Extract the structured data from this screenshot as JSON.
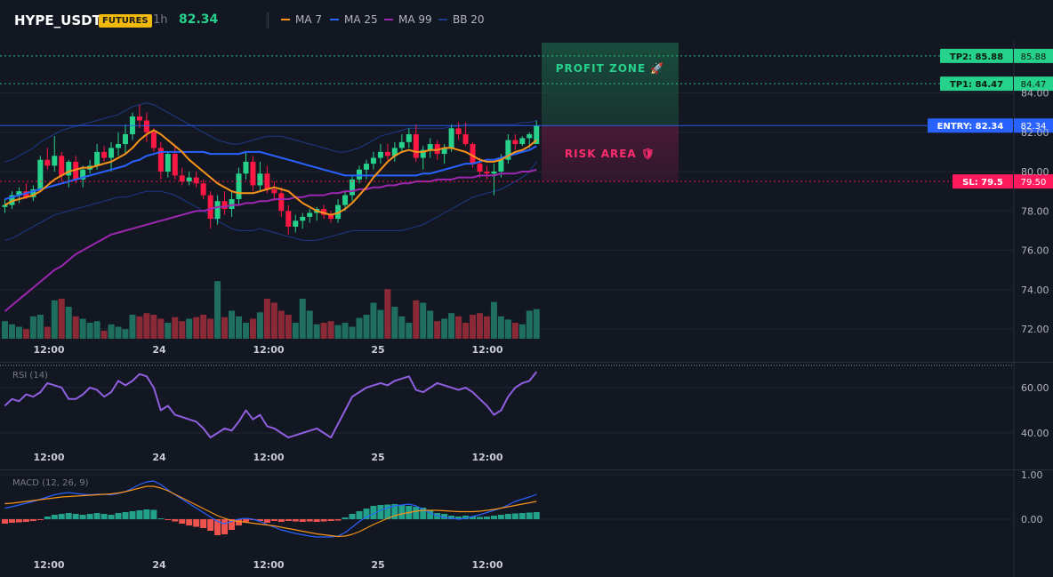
{
  "header": {
    "symbol": "HYPE_USDT",
    "badge": "FUTURES",
    "timeframe": "1h",
    "price": "82.34",
    "legend": [
      {
        "label": "MA 7",
        "color": "#f7931a"
      },
      {
        "label": "MA 25",
        "color": "#2962ff"
      },
      {
        "label": "MA 99",
        "color": "#9c27b0"
      },
      {
        "label": "BB 20",
        "color": "#1e3a8a"
      }
    ]
  },
  "chart_data": [
    {
      "type": "candlestick",
      "title": "HYPE_USDT",
      "ylim": [
        71.5,
        85.5
      ],
      "y_ticks": [
        "84.00",
        "82.00",
        "80.00",
        "78.00",
        "76.00",
        "74.00",
        "72.00"
      ],
      "x_tick_labels": [
        "12:00",
        "24",
        "12:00",
        "25",
        "12:00"
      ],
      "candles": [
        [
          78.2,
          78.6,
          77.9,
          78.3
        ],
        [
          78.3,
          79.0,
          78.1,
          78.8
        ],
        [
          78.8,
          79.2,
          78.4,
          79.0
        ],
        [
          79.0,
          79.4,
          78.6,
          78.7
        ],
        [
          78.7,
          79.3,
          78.5,
          79.1
        ],
        [
          79.1,
          80.8,
          79.0,
          80.6
        ],
        [
          80.6,
          81.2,
          80.1,
          80.3
        ],
        [
          80.3,
          81.8,
          80.0,
          80.8
        ],
        [
          80.8,
          81.0,
          79.5,
          79.8
        ],
        [
          79.8,
          80.6,
          79.2,
          80.5
        ],
        [
          80.5,
          80.8,
          79.4,
          79.6
        ],
        [
          79.6,
          80.3,
          79.2,
          80.1
        ],
        [
          80.1,
          80.6,
          79.9,
          80.3
        ],
        [
          80.3,
          81.4,
          80.1,
          81.0
        ],
        [
          81.0,
          81.3,
          80.5,
          80.7
        ],
        [
          80.7,
          81.5,
          80.0,
          81.2
        ],
        [
          81.2,
          82.0,
          80.8,
          81.4
        ],
        [
          81.4,
          82.4,
          80.9,
          81.9
        ],
        [
          81.9,
          83.0,
          81.6,
          82.8
        ],
        [
          82.8,
          83.4,
          82.2,
          82.6
        ],
        [
          82.6,
          83.0,
          81.5,
          82.0
        ],
        [
          82.0,
          82.2,
          81.0,
          81.2
        ],
        [
          81.2,
          81.5,
          79.6,
          80.0
        ],
        [
          80.0,
          81.0,
          79.7,
          80.9
        ],
        [
          80.9,
          81.3,
          79.6,
          79.8
        ],
        [
          79.8,
          80.2,
          79.3,
          79.5
        ],
        [
          79.5,
          80.0,
          79.3,
          79.7
        ],
        [
          79.7,
          80.0,
          79.2,
          79.4
        ],
        [
          79.4,
          79.6,
          78.6,
          78.8
        ],
        [
          78.8,
          79.0,
          77.1,
          77.6
        ],
        [
          77.6,
          78.8,
          77.3,
          78.5
        ],
        [
          78.5,
          79.0,
          77.8,
          78.1
        ],
        [
          78.1,
          79.0,
          77.7,
          78.6
        ],
        [
          78.6,
          80.2,
          78.3,
          79.9
        ],
        [
          79.9,
          81.0,
          79.6,
          80.5
        ],
        [
          80.5,
          80.8,
          79.0,
          79.3
        ],
        [
          79.3,
          80.5,
          79.0,
          79.9
        ],
        [
          79.9,
          80.3,
          78.9,
          79.1
        ],
        [
          79.1,
          79.5,
          78.5,
          78.9
        ],
        [
          78.9,
          79.2,
          77.7,
          78.0
        ],
        [
          78.0,
          78.3,
          76.8,
          77.2
        ],
        [
          77.2,
          77.8,
          76.9,
          77.5
        ],
        [
          77.5,
          77.9,
          77.1,
          77.7
        ],
        [
          77.7,
          78.1,
          77.4,
          77.9
        ],
        [
          77.9,
          78.2,
          77.5,
          78.1
        ],
        [
          78.1,
          78.3,
          77.6,
          77.8
        ],
        [
          77.8,
          78.0,
          77.4,
          77.6
        ],
        [
          77.6,
          78.6,
          77.4,
          78.3
        ],
        [
          78.3,
          79.0,
          78.0,
          78.8
        ],
        [
          78.8,
          79.8,
          78.5,
          79.6
        ],
        [
          79.6,
          80.3,
          79.4,
          80.1
        ],
        [
          80.1,
          80.6,
          79.6,
          80.4
        ],
        [
          80.4,
          81.0,
          80.1,
          80.7
        ],
        [
          80.7,
          81.4,
          80.4,
          81.0
        ],
        [
          81.0,
          81.4,
          80.6,
          80.8
        ],
        [
          80.8,
          81.5,
          80.5,
          81.2
        ],
        [
          81.2,
          81.9,
          81.0,
          81.5
        ],
        [
          81.5,
          82.2,
          81.2,
          81.9
        ],
        [
          81.9,
          82.4,
          80.5,
          80.7
        ],
        [
          80.7,
          81.3,
          80.1,
          81.1
        ],
        [
          81.1,
          81.7,
          80.7,
          81.4
        ],
        [
          81.4,
          81.6,
          80.6,
          80.9
        ],
        [
          80.9,
          81.4,
          80.4,
          81.2
        ],
        [
          81.2,
          82.4,
          81.0,
          82.2
        ],
        [
          82.2,
          82.5,
          81.6,
          81.9
        ],
        [
          81.9,
          82.5,
          81.3,
          81.4
        ],
        [
          81.4,
          81.5,
          80.2,
          80.4
        ],
        [
          80.4,
          80.7,
          79.7,
          80.0
        ],
        [
          80.0,
          80.3,
          79.6,
          79.9
        ],
        [
          79.9,
          80.4,
          78.8,
          80.0
        ],
        [
          80.0,
          80.9,
          79.7,
          80.6
        ],
        [
          80.6,
          81.9,
          80.4,
          81.6
        ],
        [
          81.6,
          81.9,
          81.1,
          81.4
        ],
        [
          81.4,
          81.8,
          81.3,
          81.7
        ],
        [
          81.7,
          82.0,
          81.2,
          81.9
        ],
        [
          81.4,
          82.6,
          81.4,
          82.34
        ]
      ],
      "ma7": [
        78.3,
        78.5,
        78.6,
        78.7,
        78.8,
        79.0,
        79.3,
        79.6,
        79.8,
        80.0,
        80.1,
        80.2,
        80.2,
        80.3,
        80.4,
        80.5,
        80.7,
        80.9,
        81.2,
        81.6,
        81.9,
        82.1,
        81.9,
        81.6,
        81.3,
        81.0,
        80.6,
        80.3,
        80.0,
        79.7,
        79.4,
        79.2,
        79.0,
        78.9,
        78.9,
        78.9,
        79.0,
        79.1,
        79.2,
        79.1,
        79.0,
        78.7,
        78.4,
        78.2,
        78.0,
        77.9,
        77.8,
        77.9,
        78.1,
        78.4,
        78.8,
        79.2,
        79.7,
        80.1,
        80.5,
        80.8,
        81.0,
        81.1,
        81.0,
        81.0,
        81.1,
        81.1,
        81.2,
        81.2,
        81.1,
        81.0,
        80.8,
        80.6,
        80.5,
        80.5,
        80.6,
        80.8,
        81.0,
        81.1,
        81.3,
        81.6
      ],
      "ma25": [
        78.6,
        78.7,
        78.8,
        78.9,
        79.0,
        79.1,
        79.2,
        79.3,
        79.4,
        79.5,
        79.6,
        79.7,
        79.8,
        79.9,
        80.0,
        80.1,
        80.2,
        80.3,
        80.5,
        80.6,
        80.8,
        80.9,
        81.0,
        81.0,
        81.0,
        81.0,
        81.0,
        81.0,
        81.0,
        80.9,
        80.9,
        80.9,
        80.9,
        80.9,
        81.0,
        81.0,
        81.0,
        80.9,
        80.8,
        80.7,
        80.6,
        80.5,
        80.4,
        80.3,
        80.2,
        80.1,
        80.0,
        79.9,
        79.8,
        79.8,
        79.8,
        79.8,
        79.8,
        79.8,
        79.8,
        79.8,
        79.8,
        79.8,
        79.8,
        79.9,
        79.9,
        80.0,
        80.1,
        80.2,
        80.3,
        80.4,
        80.4,
        80.5,
        80.6,
        80.6,
        80.7,
        80.8,
        80.9,
        81.0,
        81.1,
        81.3
      ],
      "ma99": [
        72.9,
        73.2,
        73.5,
        73.8,
        74.1,
        74.4,
        74.7,
        75.0,
        75.2,
        75.5,
        75.8,
        76.0,
        76.2,
        76.4,
        76.6,
        76.8,
        76.9,
        77.0,
        77.1,
        77.2,
        77.3,
        77.4,
        77.5,
        77.6,
        77.7,
        77.8,
        77.9,
        78.0,
        78.0,
        78.1,
        78.2,
        78.2,
        78.3,
        78.3,
        78.4,
        78.4,
        78.5,
        78.5,
        78.6,
        78.6,
        78.6,
        78.7,
        78.7,
        78.8,
        78.8,
        78.8,
        78.9,
        78.9,
        79.0,
        79.0,
        79.1,
        79.1,
        79.2,
        79.2,
        79.3,
        79.3,
        79.4,
        79.4,
        79.5,
        79.5,
        79.5,
        79.6,
        79.6,
        79.6,
        79.7,
        79.7,
        79.7,
        79.8,
        79.8,
        79.8,
        79.9,
        79.9,
        79.9,
        80.0,
        80.0,
        80.1
      ],
      "bb_upper": [
        80.5,
        80.6,
        80.8,
        81.0,
        81.2,
        81.5,
        81.7,
        81.9,
        82.1,
        82.2,
        82.3,
        82.4,
        82.5,
        82.6,
        82.7,
        82.8,
        82.9,
        83.1,
        83.3,
        83.4,
        83.5,
        83.4,
        83.2,
        83.0,
        82.8,
        82.6,
        82.4,
        82.2,
        82.0,
        81.8,
        81.6,
        81.5,
        81.4,
        81.4,
        81.5,
        81.6,
        81.7,
        81.8,
        81.8,
        81.8,
        81.7,
        81.6,
        81.5,
        81.4,
        81.3,
        81.2,
        81.1,
        81.0,
        81.0,
        81.1,
        81.2,
        81.4,
        81.6,
        81.8,
        81.9,
        82.0,
        82.1,
        82.2,
        82.2,
        82.2,
        82.2,
        82.2,
        82.2,
        82.3,
        82.3,
        82.4,
        82.4,
        82.4,
        82.4,
        82.4,
        82.4,
        82.4,
        82.4,
        82.5,
        82.5,
        82.6
      ],
      "bb_lower": [
        76.5,
        76.6,
        76.8,
        77.0,
        77.2,
        77.4,
        77.6,
        77.8,
        77.9,
        78.0,
        78.1,
        78.2,
        78.3,
        78.4,
        78.5,
        78.6,
        78.7,
        78.7,
        78.8,
        78.9,
        79.0,
        79.0,
        79.0,
        78.9,
        78.8,
        78.6,
        78.4,
        78.2,
        78.0,
        77.8,
        77.5,
        77.3,
        77.1,
        77.0,
        77.0,
        77.0,
        77.1,
        77.0,
        76.9,
        76.8,
        76.7,
        76.6,
        76.5,
        76.5,
        76.5,
        76.6,
        76.7,
        76.8,
        76.9,
        77.0,
        77.0,
        77.0,
        77.0,
        77.0,
        77.0,
        77.0,
        77.0,
        77.1,
        77.2,
        77.3,
        77.5,
        77.7,
        77.9,
        78.1,
        78.3,
        78.5,
        78.7,
        78.8,
        78.9,
        79.0,
        79.1,
        79.3,
        79.5,
        79.7,
        80.0,
        80.5
      ],
      "volume": [
        22,
        18,
        15,
        12,
        28,
        30,
        15,
        48,
        50,
        40,
        28,
        25,
        20,
        22,
        10,
        18,
        15,
        12,
        30,
        28,
        32,
        30,
        25,
        20,
        27,
        22,
        25,
        27,
        30,
        25,
        72,
        27,
        35,
        28,
        20,
        25,
        33,
        50,
        45,
        35,
        30,
        20,
        50,
        35,
        18,
        20,
        22,
        17,
        20,
        15,
        26,
        30,
        45,
        36,
        62,
        40,
        28,
        20,
        48,
        45,
        35,
        22,
        25,
        32,
        28,
        20,
        30,
        32,
        28,
        46,
        28,
        24,
        20,
        18,
        35,
        37
      ]
    },
    {
      "type": "line",
      "title": "RSI (14)",
      "ylim": [
        30,
        70
      ],
      "y_ticks": [
        "60.00",
        "40.00"
      ],
      "x_tick_labels": [
        "12:00",
        "24",
        "12:00",
        "25",
        "12:00"
      ],
      "values": [
        52,
        55,
        54,
        57,
        56,
        58,
        62,
        61,
        60,
        55,
        55,
        57,
        60,
        59,
        56,
        58,
        63,
        61,
        63,
        66,
        65,
        60,
        50,
        52,
        48,
        47,
        46,
        45,
        42,
        38,
        40,
        42,
        41,
        45,
        50,
        46,
        48,
        43,
        42,
        40,
        38,
        39,
        40,
        41,
        42,
        40,
        38,
        44,
        50,
        56,
        58,
        60,
        61,
        62,
        61,
        63,
        64,
        65,
        59,
        58,
        60,
        62,
        61,
        60,
        59,
        60,
        58,
        55,
        52,
        48,
        50,
        56,
        60,
        62,
        63,
        67
      ]
    },
    {
      "type": "bar+line",
      "title": "MACD (12, 26, 9)",
      "ylim": [
        -0.55,
        1.1
      ],
      "y_ticks": [
        "1.00",
        "0.00"
      ],
      "x_tick_labels": [
        "12:00",
        "24",
        "12:00",
        "25",
        "12:00"
      ],
      "histogram": [
        -0.1,
        -0.08,
        -0.07,
        -0.06,
        -0.04,
        -0.02,
        0.06,
        0.1,
        0.12,
        0.14,
        0.12,
        0.1,
        0.12,
        0.14,
        0.12,
        0.1,
        0.14,
        0.16,
        0.18,
        0.2,
        0.22,
        0.21,
        0.02,
        -0.02,
        -0.05,
        -0.1,
        -0.14,
        -0.17,
        -0.2,
        -0.26,
        -0.36,
        -0.34,
        -0.24,
        -0.14,
        -0.06,
        -0.02,
        -0.04,
        -0.08,
        -0.04,
        -0.06,
        -0.04,
        -0.05,
        -0.06,
        -0.05,
        -0.06,
        -0.05,
        -0.04,
        -0.03,
        0.04,
        0.12,
        0.18,
        0.24,
        0.3,
        0.32,
        0.33,
        0.34,
        0.32,
        0.3,
        0.28,
        0.26,
        0.2,
        0.14,
        0.12,
        0.08,
        0.06,
        0.08,
        0.06,
        0.05,
        0.06,
        0.08,
        0.1,
        0.12,
        0.13,
        0.14,
        0.15,
        0.16
      ],
      "macd": [
        0.25,
        0.28,
        0.32,
        0.36,
        0.4,
        0.45,
        0.5,
        0.55,
        0.58,
        0.6,
        0.58,
        0.56,
        0.55,
        0.56,
        0.56,
        0.55,
        0.58,
        0.62,
        0.7,
        0.78,
        0.84,
        0.86,
        0.78,
        0.66,
        0.55,
        0.45,
        0.35,
        0.25,
        0.15,
        0.05,
        -0.05,
        -0.1,
        -0.05,
        0.0,
        0.02,
        0.0,
        -0.05,
        -0.12,
        -0.18,
        -0.24,
        -0.28,
        -0.32,
        -0.35,
        -0.38,
        -0.4,
        -0.4,
        -0.4,
        -0.38,
        -0.3,
        -0.18,
        -0.05,
        0.05,
        0.12,
        0.2,
        0.26,
        0.3,
        0.32,
        0.34,
        0.3,
        0.22,
        0.14,
        0.08,
        0.04,
        0.02,
        0.0,
        0.02,
        0.06,
        0.1,
        0.15,
        0.2,
        0.25,
        0.32,
        0.4,
        0.45,
        0.5,
        0.56
      ],
      "signal": [
        0.35,
        0.36,
        0.38,
        0.4,
        0.42,
        0.44,
        0.46,
        0.48,
        0.5,
        0.51,
        0.52,
        0.53,
        0.54,
        0.55,
        0.56,
        0.57,
        0.59,
        0.62,
        0.66,
        0.7,
        0.74,
        0.74,
        0.7,
        0.64,
        0.56,
        0.48,
        0.4,
        0.32,
        0.24,
        0.16,
        0.08,
        0.02,
        -0.03,
        -0.05,
        -0.07,
        -0.09,
        -0.11,
        -0.13,
        -0.15,
        -0.18,
        -0.21,
        -0.24,
        -0.27,
        -0.3,
        -0.33,
        -0.35,
        -0.37,
        -0.39,
        -0.38,
        -0.34,
        -0.28,
        -0.2,
        -0.12,
        -0.05,
        0.02,
        0.08,
        0.12,
        0.15,
        0.18,
        0.2,
        0.2,
        0.2,
        0.19,
        0.18,
        0.17,
        0.17,
        0.17,
        0.18,
        0.2,
        0.22,
        0.25,
        0.28,
        0.31,
        0.34,
        0.37,
        0.4
      ]
    }
  ],
  "overlays": {
    "profit_zone_label": "PROFIT ZONE 🚀",
    "risk_area_label": "RISK AREA 🛡",
    "levels": [
      {
        "key": "tp2",
        "value": 85.88,
        "tag": "TP2: 85.88",
        "axis_label": "85.88",
        "color": "#26d18b"
      },
      {
        "key": "tp1",
        "value": 84.47,
        "tag": "TP1: 84.47",
        "axis_label": "84.47",
        "color": "#26d18b"
      },
      {
        "key": "entry",
        "value": 82.34,
        "tag": "ENTRY: 82.34",
        "axis_label": "82.34",
        "color": "#2962ff"
      },
      {
        "key": "sl",
        "value": 79.5,
        "tag": "SL: 79.5",
        "axis_label": "79.50",
        "color": "#ff1744"
      }
    ]
  },
  "colors": {
    "bull": "#26d18b",
    "bear": "#ff1744",
    "vol_bull": "#1f6f5e",
    "vol_bear": "#8a2a36",
    "macd_hist_pos": "#22a18b",
    "macd_hist_neg": "#ef5350",
    "macd_line": "#2962ff",
    "signal_line": "#f7931a",
    "rsi_line": "#8f5fe0",
    "grid": "#1f2430",
    "axis_text": "#b2b5be"
  }
}
